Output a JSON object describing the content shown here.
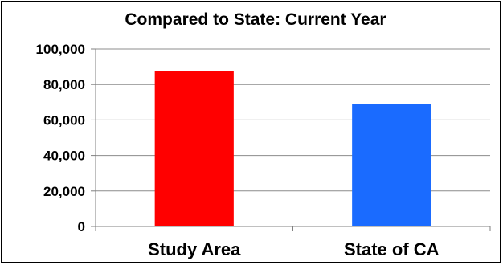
{
  "chart_data": {
    "type": "bar",
    "title": "Compared to State: Current Year",
    "categories": [
      "Study Area",
      "State of CA"
    ],
    "values": [
      87500,
      69000
    ],
    "colors": [
      "#ff0000",
      "#1a6bff"
    ],
    "ylim": [
      0,
      100000
    ],
    "yticks": [
      0,
      20000,
      40000,
      60000,
      80000,
      100000
    ],
    "ytick_labels": [
      "0",
      "20,000",
      "40,000",
      "60,000",
      "80,000",
      "100,000"
    ],
    "grid": true,
    "legend": "none",
    "xlabel": "",
    "ylabel": ""
  }
}
